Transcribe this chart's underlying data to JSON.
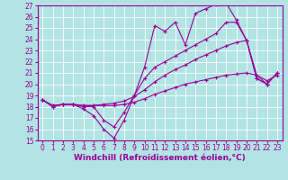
{
  "xlabel": "Windchill (Refroidissement éolien,°C)",
  "bg_color": "#b2e4e4",
  "line_color": "#990099",
  "grid_color": "#ffffff",
  "xlim": [
    -0.5,
    23.5
  ],
  "ylim": [
    15,
    27
  ],
  "xticks": [
    0,
    1,
    2,
    3,
    4,
    5,
    6,
    7,
    8,
    9,
    10,
    11,
    12,
    13,
    14,
    15,
    16,
    17,
    18,
    19,
    20,
    21,
    22,
    23
  ],
  "yticks": [
    15,
    16,
    17,
    18,
    19,
    20,
    21,
    22,
    23,
    24,
    25,
    26,
    27
  ],
  "series": [
    {
      "comment": "line that goes down to 15 at x=7, then up high to 27",
      "x": [
        0,
        1,
        2,
        3,
        4,
        5,
        6,
        7,
        8,
        9,
        10,
        11,
        12,
        13,
        14,
        15,
        16,
        17,
        18,
        19,
        20,
        21,
        22,
        23
      ],
      "y": [
        18.6,
        18.0,
        18.2,
        18.2,
        17.8,
        17.2,
        16.0,
        15.2,
        16.8,
        19.0,
        21.5,
        25.2,
        24.7,
        25.5,
        23.5,
        26.3,
        26.7,
        27.1,
        27.2,
        25.7,
        23.9,
        20.5,
        20.0,
        21.0
      ]
    },
    {
      "comment": "line that goes down to ~16 at x=6-7, then up to ~25.5 at x=18",
      "x": [
        0,
        1,
        2,
        3,
        4,
        5,
        6,
        7,
        8,
        9,
        10,
        11,
        12,
        13,
        14,
        15,
        16,
        17,
        18,
        19,
        20,
        21,
        22,
        23
      ],
      "y": [
        18.6,
        18.0,
        18.2,
        18.2,
        18.0,
        18.0,
        16.8,
        16.2,
        17.5,
        19.0,
        20.5,
        21.5,
        22.0,
        22.5,
        23.0,
        23.5,
        24.0,
        24.5,
        25.5,
        25.5,
        23.9,
        20.5,
        20.0,
        21.0
      ]
    },
    {
      "comment": "gentle upward slope line ending ~24 at x=20",
      "x": [
        0,
        1,
        2,
        3,
        4,
        5,
        6,
        7,
        8,
        9,
        10,
        11,
        12,
        13,
        14,
        15,
        16,
        17,
        18,
        19,
        20,
        21,
        22,
        23
      ],
      "y": [
        18.6,
        18.1,
        18.2,
        18.2,
        18.1,
        18.1,
        18.2,
        18.3,
        18.5,
        18.9,
        19.5,
        20.2,
        20.8,
        21.3,
        21.7,
        22.2,
        22.6,
        23.0,
        23.4,
        23.7,
        23.9,
        20.8,
        20.0,
        21.0
      ]
    },
    {
      "comment": "flattest line, slight slope",
      "x": [
        0,
        1,
        2,
        3,
        4,
        5,
        6,
        7,
        8,
        9,
        10,
        11,
        12,
        13,
        14,
        15,
        16,
        17,
        18,
        19,
        20,
        21,
        22,
        23
      ],
      "y": [
        18.6,
        18.1,
        18.2,
        18.2,
        18.1,
        18.1,
        18.1,
        18.1,
        18.2,
        18.4,
        18.7,
        19.1,
        19.4,
        19.7,
        20.0,
        20.2,
        20.4,
        20.6,
        20.8,
        20.9,
        21.0,
        20.8,
        20.3,
        20.8
      ]
    }
  ],
  "tick_fontsize": 5.5,
  "xlabel_fontsize": 6.5
}
